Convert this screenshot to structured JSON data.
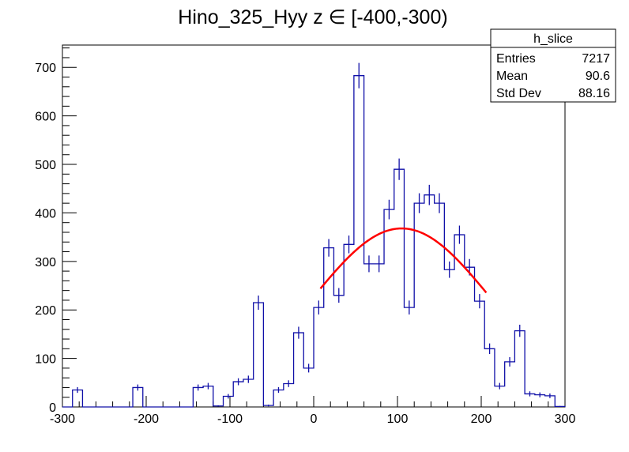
{
  "chart_data": {
    "type": "bar",
    "style": "step-histogram",
    "title": "Hino_325_Hyy z  ∈ [-400,-300)",
    "xlabel": "",
    "ylabel": "",
    "xlim": [
      -300,
      300
    ],
    "ylim": [
      0,
      746
    ],
    "bin_width": 12,
    "x_ticks": [
      "-300",
      "-200",
      "-100",
      "0",
      "100",
      "200",
      "300"
    ],
    "x_tick_values": [
      -300,
      -200,
      -100,
      0,
      100,
      200,
      300
    ],
    "y_ticks": [
      "0",
      "100",
      "200",
      "300",
      "400",
      "500",
      "600",
      "700"
    ],
    "y_tick_values": [
      0,
      100,
      200,
      300,
      400,
      500,
      600,
      700
    ],
    "values": [
      0,
      35,
      0,
      0,
      0,
      0,
      0,
      40,
      0,
      0,
      0,
      0,
      0,
      40,
      43,
      2,
      22,
      52,
      57,
      215,
      3,
      35,
      48,
      153,
      80,
      205,
      328,
      230,
      335,
      683,
      295,
      295,
      407,
      490,
      205,
      420,
      437,
      420,
      283,
      355,
      288,
      218,
      120,
      43,
      93,
      157,
      27,
      25,
      23,
      1
    ],
    "line_color": "#1010a8",
    "fit": {
      "type": "gaussian",
      "amplitude": 368,
      "mean": 105,
      "sigma": 107,
      "range": [
        8,
        207
      ],
      "color": "#ff0000"
    },
    "stats_box": {
      "title": "h_slice",
      "rows": [
        {
          "label": "Entries",
          "value": "7217"
        },
        {
          "label": "Mean",
          "value": "90.6"
        },
        {
          "label": "Std Dev",
          "value": "88.16"
        }
      ]
    },
    "grid": false,
    "legend": "top-right"
  }
}
